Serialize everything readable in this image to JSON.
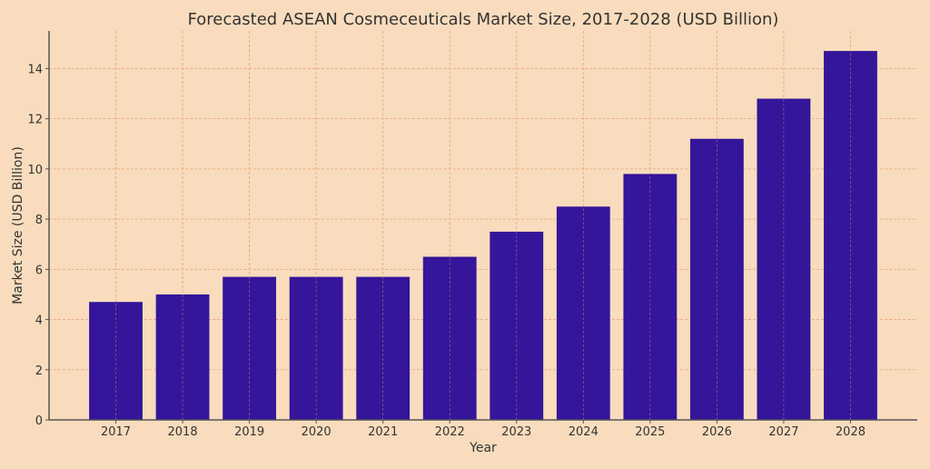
{
  "chart_data": {
    "type": "bar",
    "title": "Forecasted ASEAN Cosmeceuticals Market Size, 2017-2028 (USD Billion)",
    "xlabel": "Year",
    "ylabel": "Market Size (USD Billion)",
    "categories": [
      "2017",
      "2018",
      "2019",
      "2020",
      "2021",
      "2022",
      "2023",
      "2024",
      "2025",
      "2026",
      "2027",
      "2028"
    ],
    "values": [
      4.7,
      5.0,
      5.7,
      5.7,
      5.7,
      6.5,
      7.5,
      8.5,
      9.8,
      11.2,
      12.8,
      14.7
    ],
    "ylim": [
      0,
      15.5
    ],
    "yticks": [
      0,
      2,
      4,
      6,
      8,
      10,
      12,
      14
    ],
    "grid": true,
    "colors": {
      "bar": "#35159a",
      "background": "#f8dcbd",
      "grid": "#e8a77a",
      "axis": "#555555"
    }
  }
}
